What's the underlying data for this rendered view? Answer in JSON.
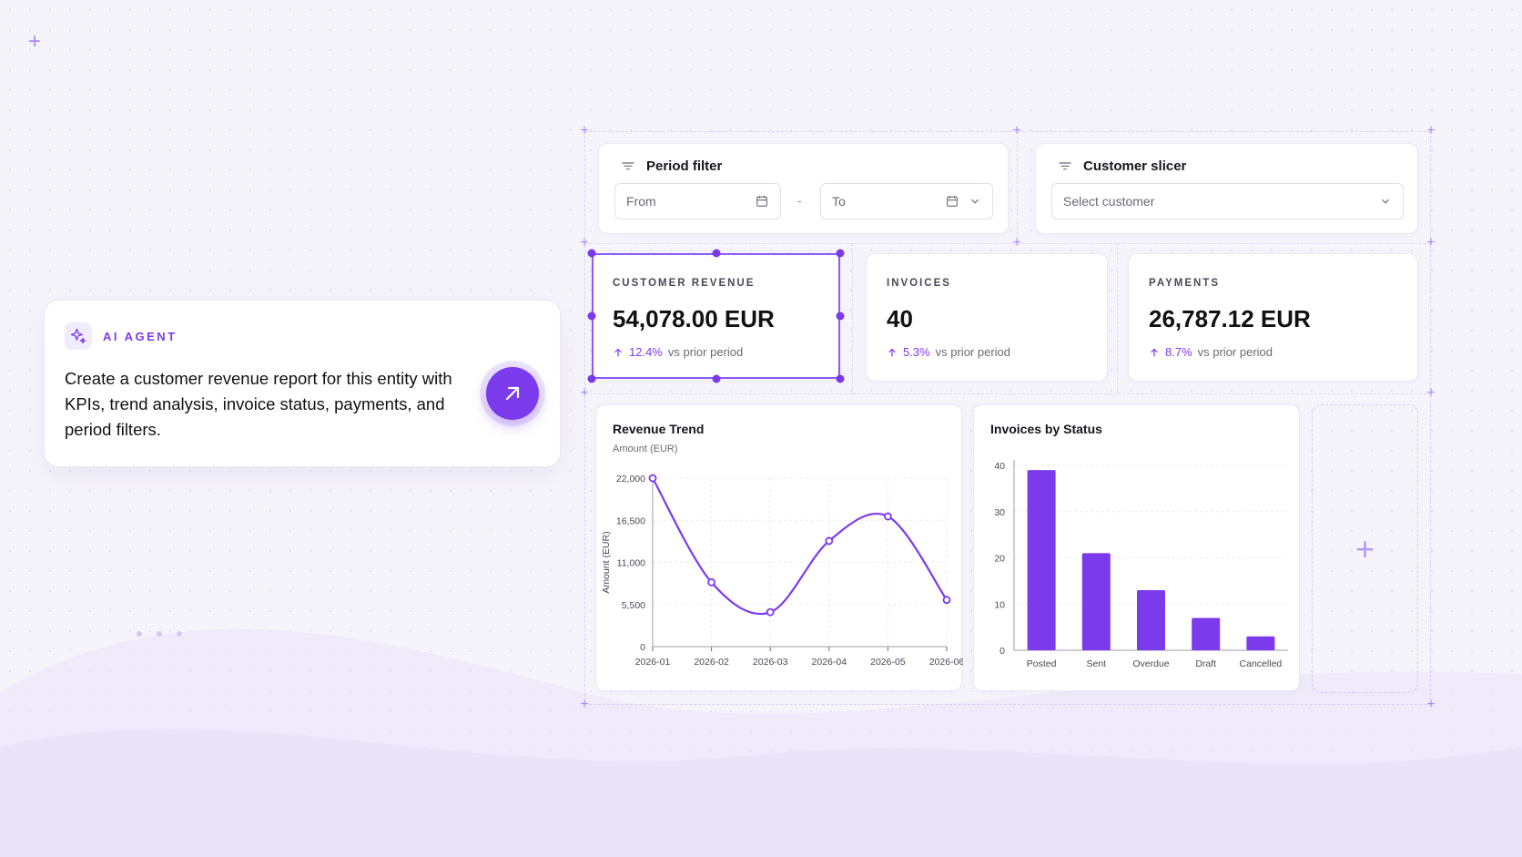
{
  "agent": {
    "label": "AI AGENT",
    "prompt": "Create a customer revenue report for this entity with KPIs, trend analysis, invoice status, payments, and period filters.",
    "icon": "sparkles-icon",
    "send_icon": "arrow-up-right-icon"
  },
  "filters": {
    "period": {
      "title": "Period filter",
      "from_placeholder": "From",
      "separator": "-",
      "to_placeholder": "To"
    },
    "customer": {
      "title": "Customer slicer",
      "placeholder": "Select customer"
    }
  },
  "kpis": [
    {
      "label": "CUSTOMER REVENUE",
      "value": "54,078.00 EUR",
      "delta": "12.4%",
      "delta_text": "vs prior period",
      "selected": true
    },
    {
      "label": "INVOICES",
      "value": "40",
      "delta": "5.3%",
      "delta_text": "vs prior period"
    },
    {
      "label": "PAYMENTS",
      "value": "26,787.12 EUR",
      "delta": "8.7%",
      "delta_text": "vs prior period"
    }
  ],
  "colors": {
    "accent": "#7c3aed",
    "accent_light": "#ede7fb",
    "bar": "#7c3aed"
  },
  "chart_data": [
    {
      "type": "line",
      "title": "Revenue Trend",
      "subtitle": "Amount (EUR)",
      "ylabel": "Amount (EUR)",
      "xlabel": "",
      "x": [
        "2026-01",
        "2026-02",
        "2026-03",
        "2026-04",
        "2026-05",
        "2026-06"
      ],
      "values": [
        22000,
        8400,
        4500,
        13800,
        17000,
        6100
      ],
      "y_ticks": [
        "0",
        "5,500",
        "11,000",
        "16,500",
        "22,000"
      ],
      "ylim": [
        0,
        22000
      ],
      "grid": true
    },
    {
      "type": "bar",
      "title": "Invoices by Status",
      "categories": [
        "Posted",
        "Sent",
        "Overdue",
        "Draft",
        "Cancelled"
      ],
      "values": [
        39,
        21,
        13,
        7,
        3
      ],
      "y_ticks": [
        "0",
        "10",
        "20",
        "30",
        "40"
      ],
      "ylim": [
        0,
        40
      ],
      "grid": true
    }
  ]
}
